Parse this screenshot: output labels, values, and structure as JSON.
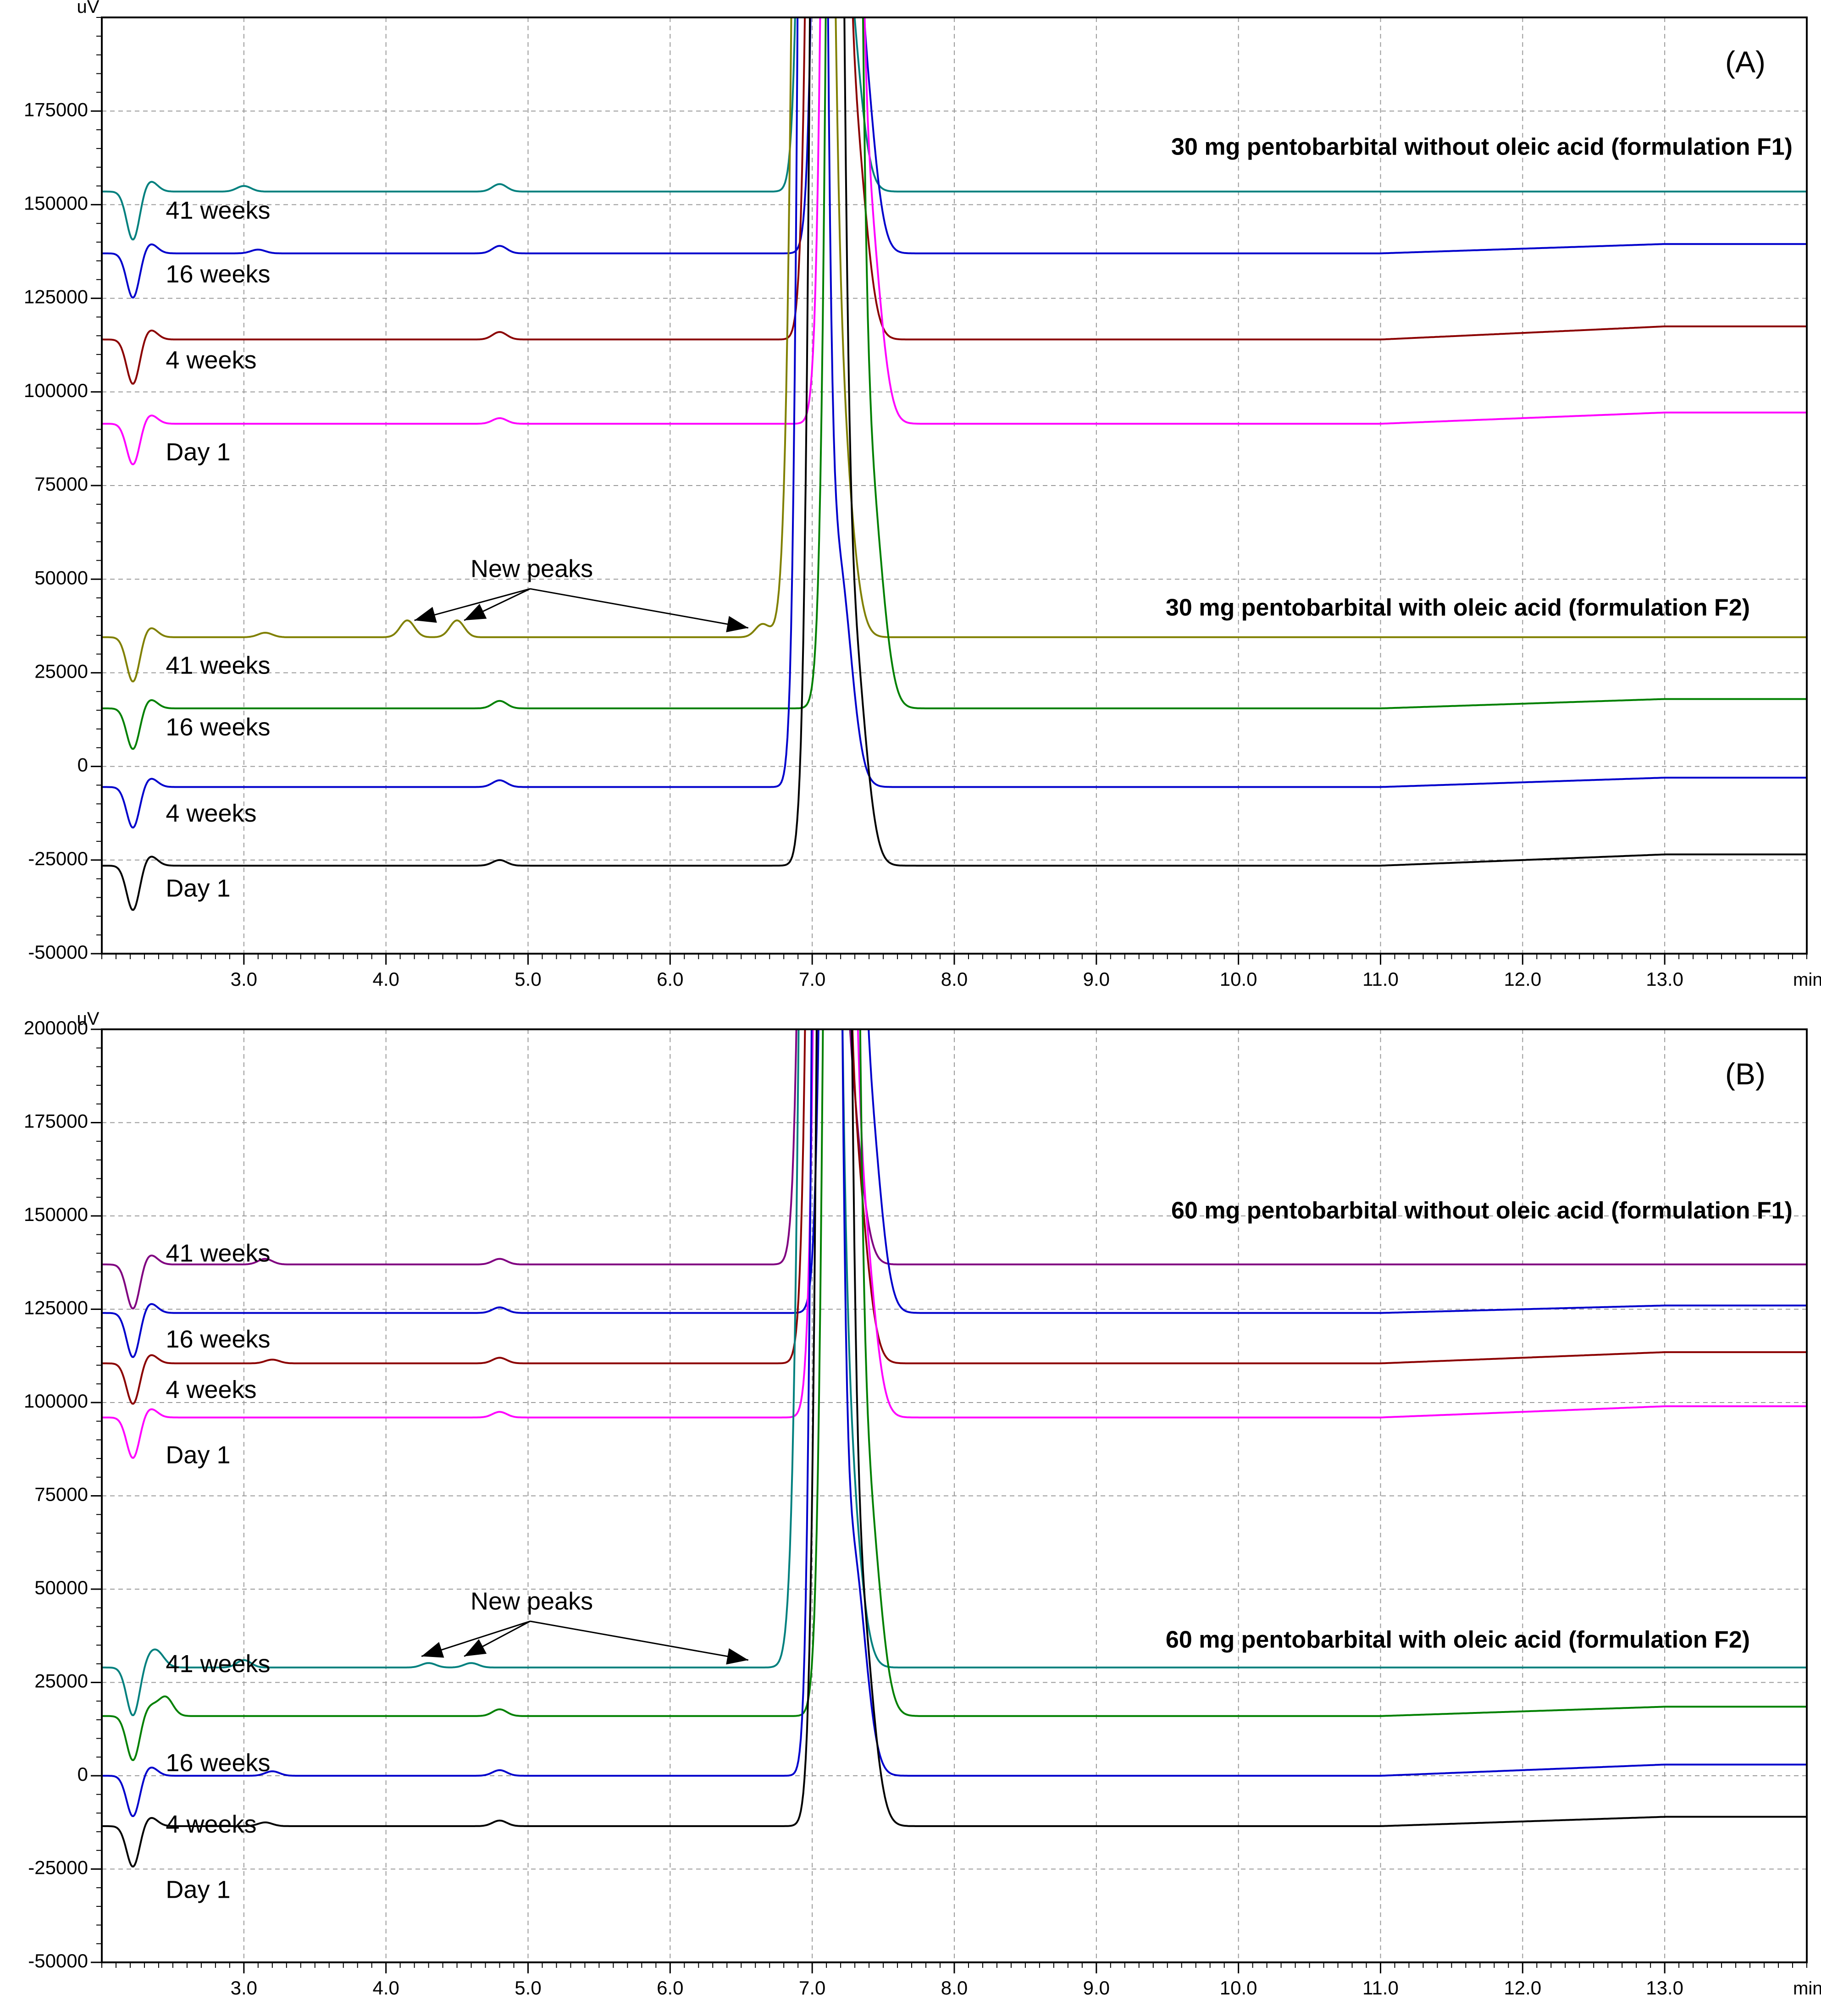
{
  "figure": {
    "description_panels": 2
  },
  "chart_data": [
    {
      "type": "line",
      "panel_label": "(A)",
      "y_unit": "uV",
      "x_unit": "min",
      "xlim": [
        2.0,
        14.0
      ],
      "ylim": [
        -50000,
        200000
      ],
      "x_ticks": [
        3.0,
        4.0,
        5.0,
        6.0,
        7.0,
        8.0,
        9.0,
        10.0,
        11.0,
        12.0,
        13.0
      ],
      "x_tick_labels": [
        "3.0",
        "4.0",
        "5.0",
        "6.0",
        "7.0",
        "8.0",
        "9.0",
        "10.0",
        "11.0",
        "12.0",
        "13.0"
      ],
      "y_ticks": [
        -50000,
        -25000,
        0,
        25000,
        50000,
        75000,
        100000,
        125000,
        150000,
        175000
      ],
      "y_tick_labels": [
        "-50000",
        "-25000",
        "0",
        "25000",
        "50000",
        "75000",
        "100000",
        "125000",
        "150000",
        "175000"
      ],
      "grid": true,
      "group_labels": [
        {
          "text": "30 mg pentobarbital without oleic acid (formulation F1)",
          "x": 13.9,
          "y": 165000
        },
        {
          "text": "30 mg pentobarbital with oleic acid (formulation F2)",
          "x": 13.6,
          "y": 42000
        }
      ],
      "annotation": {
        "text": "New peaks",
        "x": 4.95,
        "y": 56000,
        "targets": [
          [
            4.2,
            39000
          ],
          [
            4.55,
            39000
          ],
          [
            6.55,
            37000
          ]
        ]
      },
      "series": [
        {
          "name": "41 weeks",
          "group": "F1",
          "color": "#00807e",
          "baseline": 153500,
          "end_baseline": 153500,
          "dip": -13000,
          "bumps": [
            [
              3.0,
              1500
            ],
            [
              4.8,
              2000
            ]
          ],
          "peak_rt": 7.05,
          "peak_width": 0.07,
          "label_x": 2.45,
          "label_y": 148000
        },
        {
          "name": "16 weeks",
          "group": "F1",
          "color": "#0000cc",
          "baseline": 137000,
          "end_baseline": 139500,
          "dip": -12000,
          "bumps": [
            [
              3.1,
              1000
            ],
            [
              4.8,
              2000
            ]
          ],
          "peak_rt": 7.15,
          "peak_width": 0.07,
          "label_x": 2.45,
          "label_y": 131000
        },
        {
          "name": "4 weeks",
          "group": "F1",
          "color": "#8b0000",
          "baseline": 114000,
          "end_baseline": 117500,
          "dip": -12000,
          "bumps": [
            [
              4.8,
              2000
            ]
          ],
          "peak_rt": 7.1,
          "peak_width": 0.07,
          "label_x": 2.45,
          "label_y": 108000
        },
        {
          "name": "Day 1",
          "group": "F1",
          "color": "#ff00ff",
          "baseline": 91500,
          "end_baseline": 94500,
          "dip": -11000,
          "bumps": [
            [
              4.8,
              1500
            ]
          ],
          "peak_rt": 7.2,
          "peak_width": 0.07,
          "label_x": 2.45,
          "label_y": 83500
        },
        {
          "name": "41 weeks",
          "group": "F2",
          "color": "#808000",
          "baseline": 34500,
          "end_baseline": 34500,
          "dip": -12000,
          "bumps": [
            [
              3.15,
              1200
            ],
            [
              4.15,
              4500
            ],
            [
              4.5,
              4500
            ],
            [
              6.65,
              3500
            ]
          ],
          "peak_rt": 7.0,
          "peak_width": 0.08,
          "label_x": 2.45,
          "label_y": 26500
        },
        {
          "name": "16 weeks",
          "group": "F2",
          "color": "#008000",
          "baseline": 15500,
          "end_baseline": 18000,
          "dip": -11000,
          "bumps": [
            [
              4.8,
              2000
            ]
          ],
          "peak_rt": 7.22,
          "peak_width": 0.07,
          "label_x": 2.45,
          "label_y": 10000
        },
        {
          "name": "4 weeks",
          "group": "F2",
          "color": "#0000cc",
          "baseline": -5500,
          "end_baseline": -3000,
          "dip": -11000,
          "bumps": [
            [
              4.8,
              1800
            ]
          ],
          "peak_rt": 7.0,
          "peak_width": 0.06,
          "label_x": 2.45,
          "label_y": -13000
        },
        {
          "name": "Day 1",
          "group": "F2",
          "color": "#000000",
          "baseline": -26500,
          "end_baseline": -23500,
          "dip": -12000,
          "bumps": [
            [
              4.8,
              1500
            ]
          ],
          "peak_rt": 7.1,
          "peak_width": 0.07,
          "label_x": 2.45,
          "label_y": -33000
        }
      ]
    },
    {
      "type": "line",
      "panel_label": "(B)",
      "y_unit": "uV",
      "x_unit": "min",
      "xlim": [
        2.0,
        14.0
      ],
      "ylim": [
        -50000,
        200000
      ],
      "x_ticks": [
        3.0,
        4.0,
        5.0,
        6.0,
        7.0,
        8.0,
        9.0,
        10.0,
        11.0,
        12.0,
        13.0
      ],
      "x_tick_labels": [
        "3.0",
        "4.0",
        "5.0",
        "6.0",
        "7.0",
        "8.0",
        "9.0",
        "10.0",
        "11.0",
        "12.0",
        "13.0"
      ],
      "y_ticks": [
        -50000,
        -25000,
        0,
        25000,
        50000,
        75000,
        100000,
        125000,
        150000,
        175000,
        200000
      ],
      "y_tick_labels": [
        "-50000",
        "-25000",
        "0",
        "25000",
        "50000",
        "75000",
        "100000",
        "125000",
        "150000",
        "175000",
        "200000"
      ],
      "grid": true,
      "group_labels": [
        {
          "text": "60 mg pentobarbital without oleic acid (formulation F1)",
          "x": 13.9,
          "y": 151000
        },
        {
          "text": "60 mg pentobarbital with oleic acid (formulation F2)",
          "x": 13.6,
          "y": 36000
        }
      ],
      "annotation": {
        "text": "New peaks",
        "x": 4.95,
        "y": 50000,
        "targets": [
          [
            4.25,
            32000
          ],
          [
            4.55,
            32000
          ],
          [
            6.55,
            31000
          ]
        ]
      },
      "series": [
        {
          "name": "41 weeks",
          "group": "F1",
          "color": "#800080",
          "baseline": 137000,
          "end_baseline": 137000,
          "dip": -12000,
          "bumps": [
            [
              3.15,
              1500
            ],
            [
              4.8,
              1500
            ]
          ],
          "peak_rt": 7.05,
          "peak_width": 0.07,
          "label_x": 2.45,
          "label_y": 139500
        },
        {
          "name": "16 weeks",
          "group": "F1",
          "color": "#0000cc",
          "baseline": 124000,
          "end_baseline": 126000,
          "dip": -12000,
          "bumps": [
            [
              4.8,
              1500
            ]
          ],
          "peak_rt": 7.2,
          "peak_width": 0.07,
          "label_x": 2.45,
          "label_y": 116500
        },
        {
          "name": "4 weeks",
          "group": "F1",
          "color": "#8b0000",
          "baseline": 110500,
          "end_baseline": 113500,
          "dip": -11000,
          "bumps": [
            [
              3.2,
              1000
            ],
            [
              4.8,
              1500
            ]
          ],
          "peak_rt": 7.1,
          "peak_width": 0.07,
          "label_x": 2.45,
          "label_y": 103000
        },
        {
          "name": "Day 1",
          "group": "F1",
          "color": "#ff00ff",
          "baseline": 96000,
          "end_baseline": 99000,
          "dip": -11000,
          "bumps": [
            [
              4.8,
              1500
            ]
          ],
          "peak_rt": 7.15,
          "peak_width": 0.07,
          "label_x": 2.45,
          "label_y": 85500
        },
        {
          "name": "41 weeks",
          "group": "F2",
          "color": "#00807e",
          "baseline": 29000,
          "end_baseline": 29000,
          "dip": -13000,
          "bumps": [
            [
              2.4,
              3000
            ],
            [
              3.0,
              2000
            ],
            [
              4.3,
              1200
            ],
            [
              4.6,
              1200
            ]
          ],
          "peak_rt": 7.05,
          "peak_width": 0.08,
          "label_x": 2.45,
          "label_y": 29500
        },
        {
          "name": "16 weeks",
          "group": "F2",
          "color": "#008000",
          "baseline": 16000,
          "end_baseline": 18500,
          "dip": -12000,
          "bumps": [
            [
              2.45,
              5000
            ],
            [
              4.8,
              1800
            ]
          ],
          "peak_rt": 7.2,
          "peak_width": 0.07,
          "label_x": 2.45,
          "label_y": 3000
        },
        {
          "name": "4 weeks",
          "group": "F2",
          "color": "#0000cc",
          "baseline": 0,
          "end_baseline": 3000,
          "dip": -11000,
          "bumps": [
            [
              3.2,
              1200
            ],
            [
              4.8,
              1500
            ]
          ],
          "peak_rt": 7.1,
          "peak_width": 0.06,
          "label_x": 2.45,
          "label_y": -13500
        },
        {
          "name": "Day 1",
          "group": "F2",
          "color": "#000000",
          "baseline": -13500,
          "end_baseline": -11000,
          "dip": -11000,
          "bumps": [
            [
              3.15,
              1000
            ],
            [
              4.8,
              1500
            ]
          ],
          "peak_rt": 7.15,
          "peak_width": 0.07,
          "label_x": 2.45,
          "label_y": -31000
        }
      ]
    }
  ]
}
